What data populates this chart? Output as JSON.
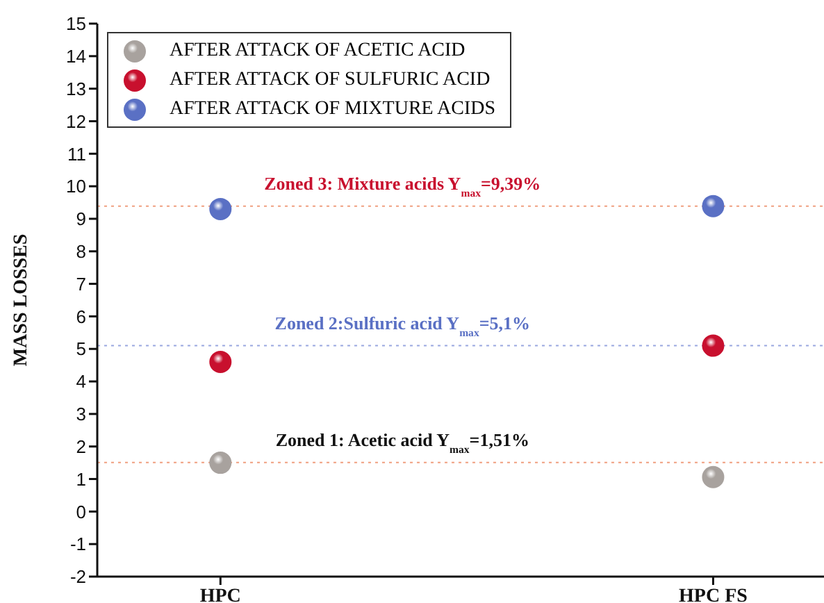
{
  "chart_data": {
    "type": "scatter",
    "categories": [
      "HPC",
      "HPC FS"
    ],
    "ylabel": "MASS LOSSES",
    "series": [
      {
        "name": "AFTER  ATTACK OF ACETIC ACID",
        "color": "#a8a29e",
        "values": [
          1.5,
          1.06
        ]
      },
      {
        "name": "AFTER  ATTACK OF SULFURIC ACID",
        "color": "#c8102e",
        "values": [
          4.6,
          5.1
        ]
      },
      {
        "name": "AFTER  ATTACK OF MIXTURE ACIDS",
        "color": "#5a70c4",
        "values": [
          9.3,
          9.39
        ]
      }
    ],
    "ylim": [
      -2,
      15
    ],
    "yticks": [
      -2,
      -1,
      0,
      1,
      2,
      3,
      4,
      5,
      6,
      7,
      8,
      9,
      10,
      11,
      12,
      13,
      14,
      15
    ],
    "ref_lines": [
      {
        "axis": "y",
        "value": 9.39,
        "label": "Zoned 3: Mixture acids Y$_{max}$=9,39%",
        "color": "#f0a080",
        "line_style": "dotted"
      },
      {
        "axis": "y",
        "value": 5.1,
        "label": "Zoned 2:Sulfuric acid Y$_{max}$=5,1%",
        "color": "#9aa8e0",
        "line_style": "dotted"
      },
      {
        "axis": "y",
        "value": 1.51,
        "label": "Zoned 1: Acetic acid Y$_{max}$=1,51%",
        "color": "#f0a080",
        "line_style": "dotted"
      }
    ],
    "grid": false,
    "legend": "top left",
    "marker": "circle"
  }
}
